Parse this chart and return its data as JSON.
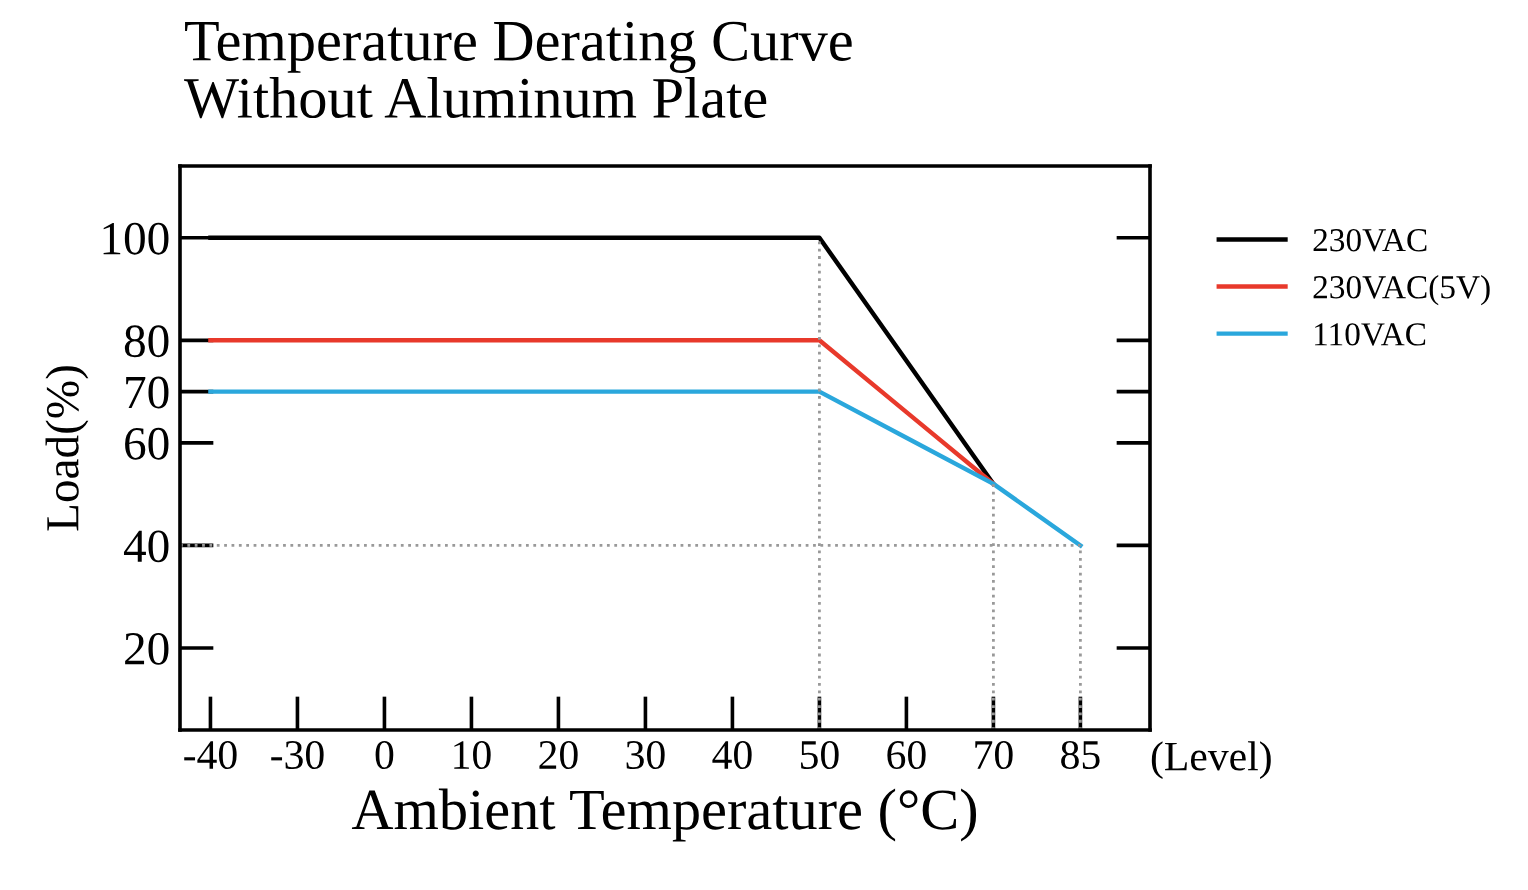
{
  "chart_data": {
    "type": "line",
    "title": "Temperature Derating Curve\nWithout Aluminum Plate",
    "xlabel": "Ambient Temperature (°C)",
    "ylabel": "Load(%)",
    "categories": [
      "-40",
      "-30",
      "0",
      "10",
      "20",
      "30",
      "40",
      "50",
      "60",
      "70",
      "85"
    ],
    "series": [
      {
        "name": "230VAC",
        "color": "#000000",
        "values": [
          100,
          100,
          100,
          100,
          100,
          100,
          100,
          100,
          76,
          52,
          null
        ]
      },
      {
        "name": "230VAC(5V)",
        "color": "#e8392b",
        "values": [
          80,
          80,
          80,
          80,
          80,
          80,
          80,
          80,
          66,
          52,
          null
        ]
      },
      {
        "name": "110VAC",
        "color": "#2aa7dc",
        "values": [
          70,
          70,
          70,
          70,
          70,
          70,
          70,
          70,
          61,
          52,
          40
        ]
      }
    ],
    "ylim": [
      4,
      114
    ],
    "yticks": [
      20,
      40,
      60,
      70,
      80,
      100
    ],
    "ref_lines": [
      {
        "axis": "x",
        "value": "50",
        "line_style": "dotted",
        "color": "#999999"
      },
      {
        "axis": "x",
        "value": "70",
        "line_style": "dotted",
        "color": "#999999"
      },
      {
        "axis": "x",
        "value": "85",
        "line_style": "dotted",
        "color": "#999999"
      },
      {
        "axis": "y",
        "value": 40,
        "line_style": "dotted",
        "color": "#999999"
      }
    ],
    "annotations": [
      "(Level)"
    ],
    "legend": "right",
    "grid": false,
    "marker": "none",
    "line_style": "solid"
  }
}
